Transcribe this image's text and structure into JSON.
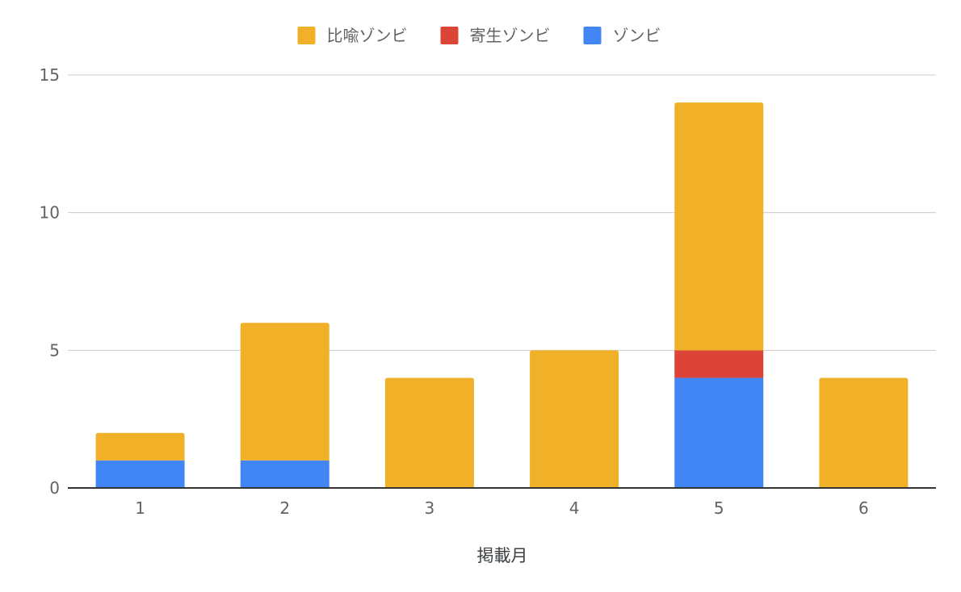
{
  "chart_data": {
    "type": "bar",
    "stacked": true,
    "title": "",
    "xlabel": "掲載月",
    "ylabel": "",
    "categories": [
      "1",
      "2",
      "3",
      "4",
      "5",
      "6"
    ],
    "series": [
      {
        "name": "ゾンビ",
        "color": "#4285f4",
        "values": [
          1,
          1,
          0,
          0,
          4,
          0
        ]
      },
      {
        "name": "寄生ゾンビ",
        "color": "#db4437",
        "values": [
          0,
          0,
          0,
          0,
          1,
          0
        ]
      },
      {
        "name": "比喩ゾンビ",
        "color": "#f0b129",
        "values": [
          1,
          5,
          4,
          5,
          9,
          4
        ]
      }
    ],
    "legend_order": [
      "比喩ゾンビ",
      "寄生ゾンビ",
      "ゾンビ"
    ],
    "legend_position": "top",
    "ylim": [
      0,
      15
    ],
    "yticks": [
      0,
      5,
      10,
      15
    ],
    "grid": true
  }
}
